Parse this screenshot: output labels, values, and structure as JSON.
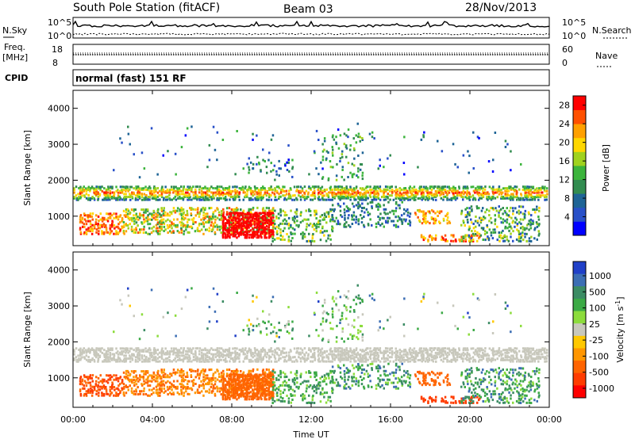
{
  "header": {
    "station": "South Pole Station (fitACF)",
    "beam": "Beam 03",
    "date": "28/Nov/2013"
  },
  "noise_panel": {
    "left_label": "N.Sky",
    "left_ticks": [
      "10^5",
      "10^0"
    ],
    "right_ticks": [
      "10^5",
      "10^0"
    ],
    "right_label": "N.Search"
  },
  "freq_panel": {
    "left_label_1": "Freq.",
    "left_label_2": "[MHz]",
    "left_ticks": [
      "18",
      "8"
    ],
    "right_ticks": [
      "60",
      "0"
    ],
    "right_label": "Nave"
  },
  "cpid": {
    "label": "CPID",
    "value": "normal (fast) 151 RF"
  },
  "colors": {
    "power": [
      "#0000ff",
      "#2850c8",
      "#1e6496",
      "#328c50",
      "#3cb43c",
      "#a0d21e",
      "#ffd700",
      "#ffa000",
      "#ff5000",
      "#ff0000"
    ],
    "velocity": [
      "#2040c8",
      "#3c6eb4",
      "#3c8c64",
      "#3caa46",
      "#8cdc3c",
      "#c8c8bc",
      "#ffc800",
      "#ff9600",
      "#ff6400",
      "#ff3c00",
      "#ff0000"
    ]
  },
  "chart_data": [
    {
      "type": "heatmap",
      "name": "power",
      "ylabel": "Slant Range [km]",
      "yticks": [
        "1000",
        "2000",
        "3000",
        "4000"
      ],
      "ylim": [
        180,
        4500
      ],
      "xlim": [
        "00:00",
        "24:00"
      ],
      "colorbar_label": "Power [dB]",
      "colorbar_ticks": [
        "4",
        "8",
        "12",
        "16",
        "20",
        "24",
        "28"
      ],
      "colorbar_range": [
        0,
        30
      ]
    },
    {
      "type": "heatmap",
      "name": "velocity",
      "ylabel": "Slant Range [km]",
      "yticks": [
        "1000",
        "2000",
        "3000",
        "4000"
      ],
      "ylim": [
        180,
        4500
      ],
      "xlim": [
        "00:00",
        "24:00"
      ],
      "colorbar_label": "Velocity [m s^-1]",
      "colorbar_ticks": [
        "1000",
        "500",
        "100",
        "25",
        "-25",
        "-100",
        "-500",
        "-1000"
      ]
    }
  ],
  "xaxis": {
    "label": "Time UT",
    "ticks": [
      "00:00",
      "04:00",
      "08:00",
      "12:00",
      "16:00",
      "20:00",
      "00:00"
    ]
  }
}
